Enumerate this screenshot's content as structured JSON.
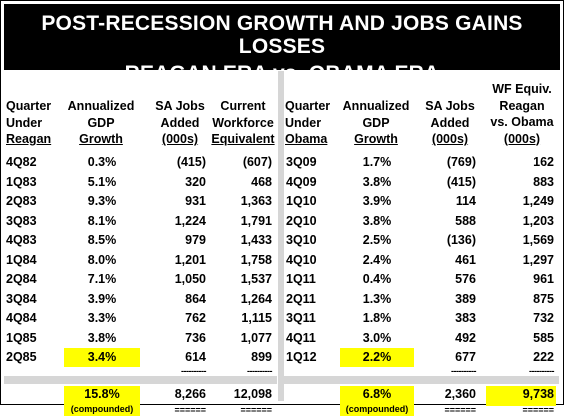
{
  "title": {
    "line1": "POST-RECESSION GROWTH AND JOBS GAINS LOSSES",
    "line2": "REAGAN ERA vs. OBAMA ERA"
  },
  "reagan": {
    "headers": {
      "quarter": [
        "Quarter",
        "Under",
        "Reagan"
      ],
      "gdp": [
        "Annualized",
        "GDP",
        "Growth"
      ],
      "jobs": [
        "SA Jobs",
        "Added",
        "(000s)"
      ],
      "workforce": [
        "Current",
        "Workforce",
        "Equivalent"
      ]
    },
    "rows": [
      {
        "q": "4Q82",
        "gdp": "0.3%",
        "jobs": "(415)",
        "wf": "(607)"
      },
      {
        "q": "1Q83",
        "gdp": "5.1%",
        "jobs": "320",
        "wf": "468"
      },
      {
        "q": "2Q83",
        "gdp": "9.3%",
        "jobs": "931",
        "wf": "1,363"
      },
      {
        "q": "3Q83",
        "gdp": "8.1%",
        "jobs": "1,224",
        "wf": "1,791"
      },
      {
        "q": "4Q83",
        "gdp": "8.5%",
        "jobs": "979",
        "wf": "1,433"
      },
      {
        "q": "1Q84",
        "gdp": "8.0%",
        "jobs": "1,201",
        "wf": "1,758"
      },
      {
        "q": "2Q84",
        "gdp": "7.1%",
        "jobs": "1,050",
        "wf": "1,537"
      },
      {
        "q": "3Q84",
        "gdp": "3.9%",
        "jobs": "864",
        "wf": "1,264"
      },
      {
        "q": "4Q84",
        "gdp": "3.3%",
        "jobs": "762",
        "wf": "1,115"
      },
      {
        "q": "1Q85",
        "gdp": "3.8%",
        "jobs": "736",
        "wf": "1,077"
      },
      {
        "q": "2Q85",
        "gdp": "3.4%",
        "jobs": "614",
        "wf": "899",
        "highlight": true
      }
    ],
    "totals": {
      "gdp": "15.8%",
      "gdp_note": "(compounded)",
      "jobs": "8,266",
      "wf": "12,098"
    }
  },
  "obama": {
    "headers": {
      "quarter": [
        "Quarter",
        "Under",
        "Obama"
      ],
      "gdp": [
        "Annualized",
        "GDP",
        "Growth"
      ],
      "jobs": [
        "SA Jobs",
        "Added",
        "(000s)"
      ],
      "wf": [
        "WF Equiv.",
        "Reagan",
        "vs. Obama",
        "(000s)"
      ]
    },
    "rows": [
      {
        "q": "3Q09",
        "gdp": "1.7%",
        "jobs": "(769)",
        "wf": "162"
      },
      {
        "q": "4Q09",
        "gdp": "3.8%",
        "jobs": "(415)",
        "wf": "883"
      },
      {
        "q": "1Q10",
        "gdp": "3.9%",
        "jobs": "114",
        "wf": "1,249"
      },
      {
        "q": "2Q10",
        "gdp": "3.8%",
        "jobs": "588",
        "wf": "1,203"
      },
      {
        "q": "3Q10",
        "gdp": "2.5%",
        "jobs": "(136)",
        "wf": "1,569"
      },
      {
        "q": "4Q10",
        "gdp": "2.4%",
        "jobs": "461",
        "wf": "1,297"
      },
      {
        "q": "1Q11",
        "gdp": "0.4%",
        "jobs": "576",
        "wf": "961"
      },
      {
        "q": "2Q11",
        "gdp": "1.3%",
        "jobs": "389",
        "wf": "875"
      },
      {
        "q": "3Q11",
        "gdp": "1.8%",
        "jobs": "383",
        "wf": "732"
      },
      {
        "q": "4Q11",
        "gdp": "3.0%",
        "jobs": "492",
        "wf": "585"
      },
      {
        "q": "1Q12",
        "gdp": "2.2%",
        "jobs": "677",
        "wf": "222",
        "highlight": true
      }
    ],
    "totals": {
      "gdp": "6.8%",
      "gdp_note": "(compounded)",
      "jobs": "2,360",
      "wf": "9,738"
    }
  },
  "separators": {
    "dash": "----------",
    "equals": "======"
  },
  "colors": {
    "banner": "#000000",
    "highlight": "#ffff00",
    "divider": "#d6d6d6"
  }
}
